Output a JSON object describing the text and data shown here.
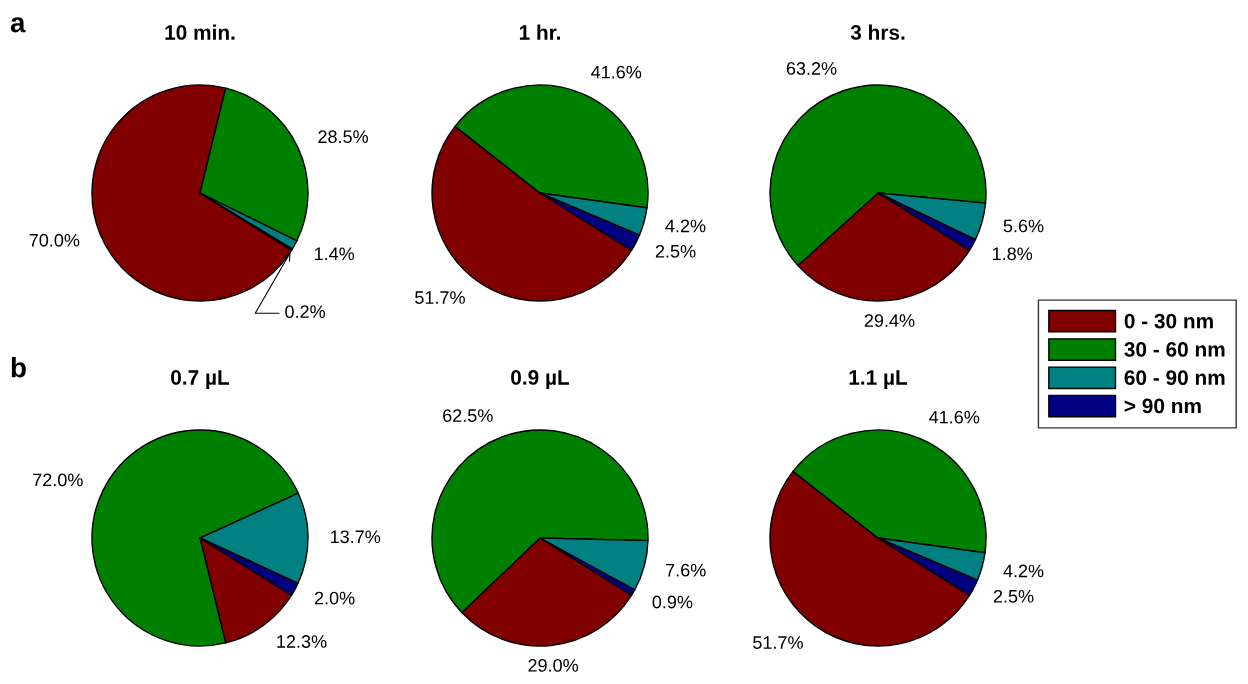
{
  "chart_data": [
    {
      "type": "pie",
      "title": "10 min.",
      "annotations": [
        "a"
      ],
      "legend": "right",
      "categories": [
        "0 - 30 nm",
        "30 - 60 nm",
        "60 - 90 nm",
        "> 90 nm"
      ],
      "values": [
        70.0,
        28.5,
        1.4,
        0.2
      ],
      "value_labels": [
        "70.0%",
        "28.5%",
        "1.4%",
        "0.2%"
      ],
      "colors": [
        "#800000",
        "#008000",
        "#008080",
        "#000080"
      ]
    },
    {
      "type": "pie",
      "title": "1 hr.",
      "values": [
        51.7,
        41.6,
        4.2,
        2.5
      ],
      "value_labels": [
        "51.7%",
        "41.6%",
        "4.2%",
        "2.5%"
      ],
      "colors": [
        "#800000",
        "#008000",
        "#008080",
        "#000080"
      ]
    },
    {
      "type": "pie",
      "title": "3 hrs.",
      "values": [
        29.4,
        63.2,
        5.6,
        1.8
      ],
      "value_labels": [
        "29.4%",
        "63.2%",
        "5.6%",
        "1.8%"
      ],
      "colors": [
        "#800000",
        "#008000",
        "#008080",
        "#000080"
      ]
    },
    {
      "type": "pie",
      "title": "0.7 µL",
      "annotations": [
        "b"
      ],
      "values": [
        12.3,
        72.0,
        13.7,
        2.0
      ],
      "value_labels": [
        "12.3%",
        "72.0%",
        "13.7%",
        "2.0%"
      ],
      "colors": [
        "#800000",
        "#008000",
        "#008080",
        "#000080"
      ]
    },
    {
      "type": "pie",
      "title": "0.9 µL",
      "values": [
        29.0,
        62.5,
        7.6,
        0.9
      ],
      "value_labels": [
        "29.0%",
        "62.5%",
        "7.6%",
        "0.9%"
      ],
      "colors": [
        "#800000",
        "#008000",
        "#008080",
        "#000080"
      ]
    },
    {
      "type": "pie",
      "title": "1.1 µL",
      "values": [
        51.7,
        41.6,
        4.2,
        2.5
      ],
      "value_labels": [
        "51.7%",
        "41.6%",
        "4.2%",
        "2.5%"
      ],
      "colors": [
        "#800000",
        "#008000",
        "#008080",
        "#000080"
      ]
    }
  ]
}
